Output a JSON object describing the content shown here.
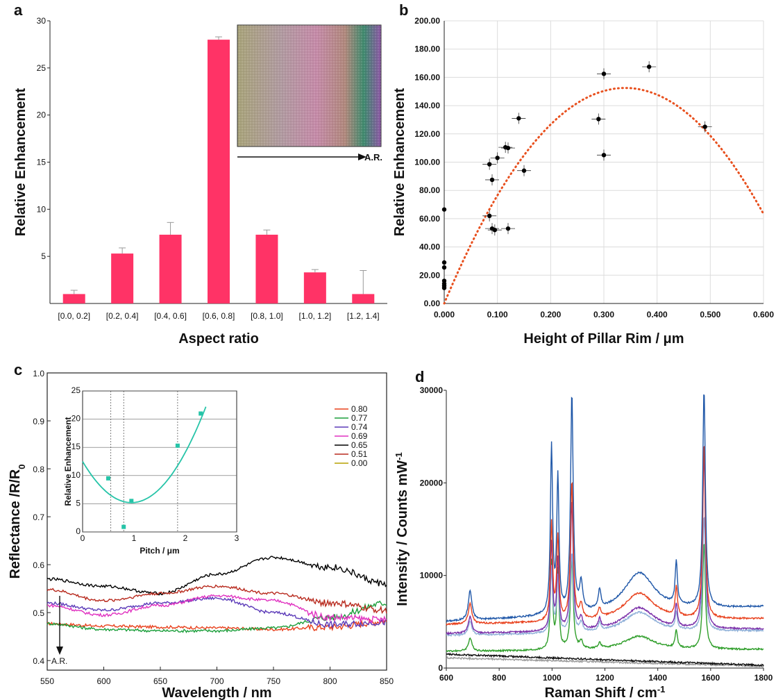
{
  "chart_data": [
    {
      "panel": "a",
      "type": "bar",
      "xlabel": "Aspect ratio",
      "ylabel": "Relative Enhancement",
      "ylim": [
        0,
        30
      ],
      "yticks": [
        5,
        10,
        15,
        20,
        25,
        30
      ],
      "categories": [
        "[0.0, 0.2]",
        "[0.2, 0.4]",
        "[0.4, 0.6]",
        "[0.6, 0.8]",
        "[0.8, 1.0]",
        "[1.0, 1.2]",
        "[1.2, 1.4]"
      ],
      "values": [
        1.0,
        5.3,
        7.3,
        28.0,
        7.3,
        3.3,
        1.0
      ],
      "errors": [
        0.4,
        0.6,
        1.3,
        0.3,
        0.5,
        0.3,
        2.5
      ],
      "bar_color": "#ff3366",
      "inset": {
        "type": "image",
        "annotation": "A.R."
      }
    },
    {
      "panel": "b",
      "type": "scatter",
      "xlabel": "Height of Pillar Rim / μm",
      "ylabel": "Relative Enhancement",
      "xlim": [
        0,
        0.6
      ],
      "ylim": [
        0,
        200
      ],
      "xticks": [
        "0.000",
        "0.100",
        "0.200",
        "0.300",
        "0.400",
        "0.500",
        "0.600"
      ],
      "yticks": [
        "0.00",
        "20.00",
        "40.00",
        "60.00",
        "80.00",
        "100.00",
        "120.00",
        "140.00",
        "160.00",
        "180.00",
        "200.00"
      ],
      "grid": true,
      "points": [
        {
          "x": 0.0,
          "y": 66.5
        },
        {
          "x": 0.0,
          "y": 29
        },
        {
          "x": 0.0,
          "y": 25.5
        },
        {
          "x": 0.0,
          "y": 16
        },
        {
          "x": 0.0,
          "y": 14
        },
        {
          "x": 0.0,
          "y": 12.5
        },
        {
          "x": 0.0,
          "y": 11
        },
        {
          "x": 0.085,
          "y": 98.5
        },
        {
          "x": 0.085,
          "y": 62
        },
        {
          "x": 0.09,
          "y": 87.5
        },
        {
          "x": 0.09,
          "y": 53
        },
        {
          "x": 0.095,
          "y": 52
        },
        {
          "x": 0.1,
          "y": 103
        },
        {
          "x": 0.115,
          "y": 110.5
        },
        {
          "x": 0.12,
          "y": 110
        },
        {
          "x": 0.12,
          "y": 53
        },
        {
          "x": 0.14,
          "y": 131
        },
        {
          "x": 0.15,
          "y": 94
        },
        {
          "x": 0.29,
          "y": 130.5
        },
        {
          "x": 0.3,
          "y": 162.5
        },
        {
          "x": 0.3,
          "y": 105
        },
        {
          "x": 0.385,
          "y": 167.5
        },
        {
          "x": 0.49,
          "y": 125
        }
      ],
      "fit": {
        "style": "dotted",
        "color": "#e8501e",
        "peak_x": 0.34,
        "peak_y": 152.5,
        "y_at_0": 0,
        "y_at_06": 64
      }
    },
    {
      "panel": "c",
      "type": "line",
      "xlabel": "Wavelength / nm",
      "ylabel": "Reflectance /R/R",
      "ylabel_sub": "0",
      "xlim": [
        550,
        850
      ],
      "ylim": [
        0.38,
        1.0
      ],
      "xticks": [
        "550",
        "600",
        "650",
        "700",
        "750",
        "800",
        "850"
      ],
      "yticks": [
        "0.4",
        "0.5",
        "0.6",
        "0.7",
        "0.8",
        "0.9",
        "1.0"
      ],
      "annotation": "A.R.",
      "series": [
        {
          "name": "0.80",
          "color": "#e8401c",
          "x": [
            550,
            600,
            650,
            700,
            750,
            800,
            850
          ],
          "y": [
            0.477,
            0.472,
            0.47,
            0.468,
            0.465,
            0.47,
            0.482
          ]
        },
        {
          "name": "0.77",
          "color": "#1a9e3a",
          "x": [
            550,
            600,
            650,
            700,
            750,
            800,
            850
          ],
          "y": [
            0.477,
            0.465,
            0.462,
            0.462,
            0.468,
            0.49,
            0.52
          ]
        },
        {
          "name": "0.74",
          "color": "#5b3ab8",
          "x": [
            550,
            600,
            650,
            700,
            750,
            800,
            850
          ],
          "y": [
            0.52,
            0.505,
            0.52,
            0.53,
            0.5,
            0.475,
            0.48
          ]
        },
        {
          "name": "0.69",
          "color": "#e030c0",
          "x": [
            550,
            600,
            650,
            700,
            750,
            800,
            850
          ],
          "y": [
            0.515,
            0.495,
            0.515,
            0.535,
            0.525,
            0.49,
            0.485
          ]
        },
        {
          "name": "0.65",
          "color": "#000000",
          "x": [
            550,
            600,
            650,
            700,
            750,
            800,
            850
          ],
          "y": [
            0.57,
            0.555,
            0.54,
            0.58,
            0.615,
            0.595,
            0.56
          ]
        },
        {
          "name": "0.51",
          "color": "#b82a1e",
          "x": [
            550,
            600,
            650,
            700,
            750,
            800,
            850
          ],
          "y": [
            0.548,
            0.525,
            0.54,
            0.555,
            0.54,
            0.52,
            0.505
          ]
        },
        {
          "name": "0.00",
          "color": "#b5a000",
          "x": [],
          "y": []
        }
      ],
      "inset": {
        "type": "scatter",
        "xlabel": "Pitch / μm",
        "ylabel": "Relative Enhancement",
        "xlim": [
          0,
          3
        ],
        "ylim": [
          0,
          25
        ],
        "xticks": [
          "0",
          "1",
          "2",
          "3"
        ],
        "yticks": [
          "0",
          "5",
          "10",
          "15",
          "20",
          "25"
        ],
        "color": "#26c4a8",
        "points": [
          {
            "x": 0.5,
            "y": 9.5
          },
          {
            "x": 0.8,
            "y": 0.9
          },
          {
            "x": 0.95,
            "y": 5.5
          },
          {
            "x": 1.85,
            "y": 15.3
          },
          {
            "x": 2.3,
            "y": 21
          }
        ],
        "fit": {
          "vertex_x": 0.95,
          "vertex_y": 5.2,
          "y_at_0": 12.5,
          "y_at_24": 25
        }
      }
    },
    {
      "panel": "d",
      "type": "line",
      "xlabel": "Raman Shift / cm",
      "xlabel_sup": "-1",
      "ylabel": "Intensity / Counts mW",
      "ylabel_sup": "-1",
      "xlim": [
        600,
        1800
      ],
      "ylim": [
        0,
        30000
      ],
      "xticks": [
        "600",
        "800",
        "1000",
        "1200",
        "1400",
        "1600",
        "1800"
      ],
      "yticks": [
        "0",
        "10000",
        "20000",
        "30000"
      ],
      "peaks": [
        {
          "x": 690,
          "w": 8
        },
        {
          "x": 998,
          "w": 5
        },
        {
          "x": 1022,
          "w": 5
        },
        {
          "x": 1075,
          "w": 6
        },
        {
          "x": 1110,
          "w": 7
        },
        {
          "x": 1180,
          "w": 6
        },
        {
          "x": 1330,
          "w": 70
        },
        {
          "x": 1470,
          "w": 5
        },
        {
          "x": 1575,
          "w": 6
        }
      ],
      "series": [
        {
          "color": "#1f57a8",
          "baseline_start": 5000,
          "baseline_end": 6600,
          "heights": [
            3200,
            18000,
            14500,
            23500,
            3000,
            2000,
            4300,
            4600,
            23500
          ]
        },
        {
          "color": "#e8401c",
          "baseline_start": 4700,
          "baseline_end": 5300,
          "heights": [
            2200,
            10500,
            9000,
            15000,
            1500,
            1000,
            3000,
            3200,
            19000
          ]
        },
        {
          "color": "#7a2ea8",
          "baseline_start": 3700,
          "baseline_end": 4200,
          "heights": [
            1800,
            9500,
            7500,
            14000,
            1200,
            1000,
            2500,
            2500,
            19000
          ]
        },
        {
          "color": "#8fb0d8",
          "baseline_start": 3500,
          "baseline_end": 4000,
          "heights": [
            1500,
            7000,
            6000,
            8500,
            1000,
            800,
            2200,
            1800,
            12500
          ]
        },
        {
          "color": "#2f9e2a",
          "baseline_start": 1800,
          "baseline_end": 2000,
          "heights": [
            1400,
            9500,
            8500,
            9800,
            800,
            600,
            1500,
            1900,
            11500
          ]
        },
        {
          "color": "#111111",
          "baseline_start": 1500,
          "baseline_end": 300,
          "heights": [
            0,
            0,
            0,
            0,
            0,
            0,
            0,
            0,
            0
          ]
        },
        {
          "color": "#9a9a9a",
          "baseline_start": 1100,
          "baseline_end": 200,
          "heights": [
            0,
            0,
            0,
            0,
            0,
            0,
            0,
            0,
            0
          ]
        }
      ]
    }
  ]
}
